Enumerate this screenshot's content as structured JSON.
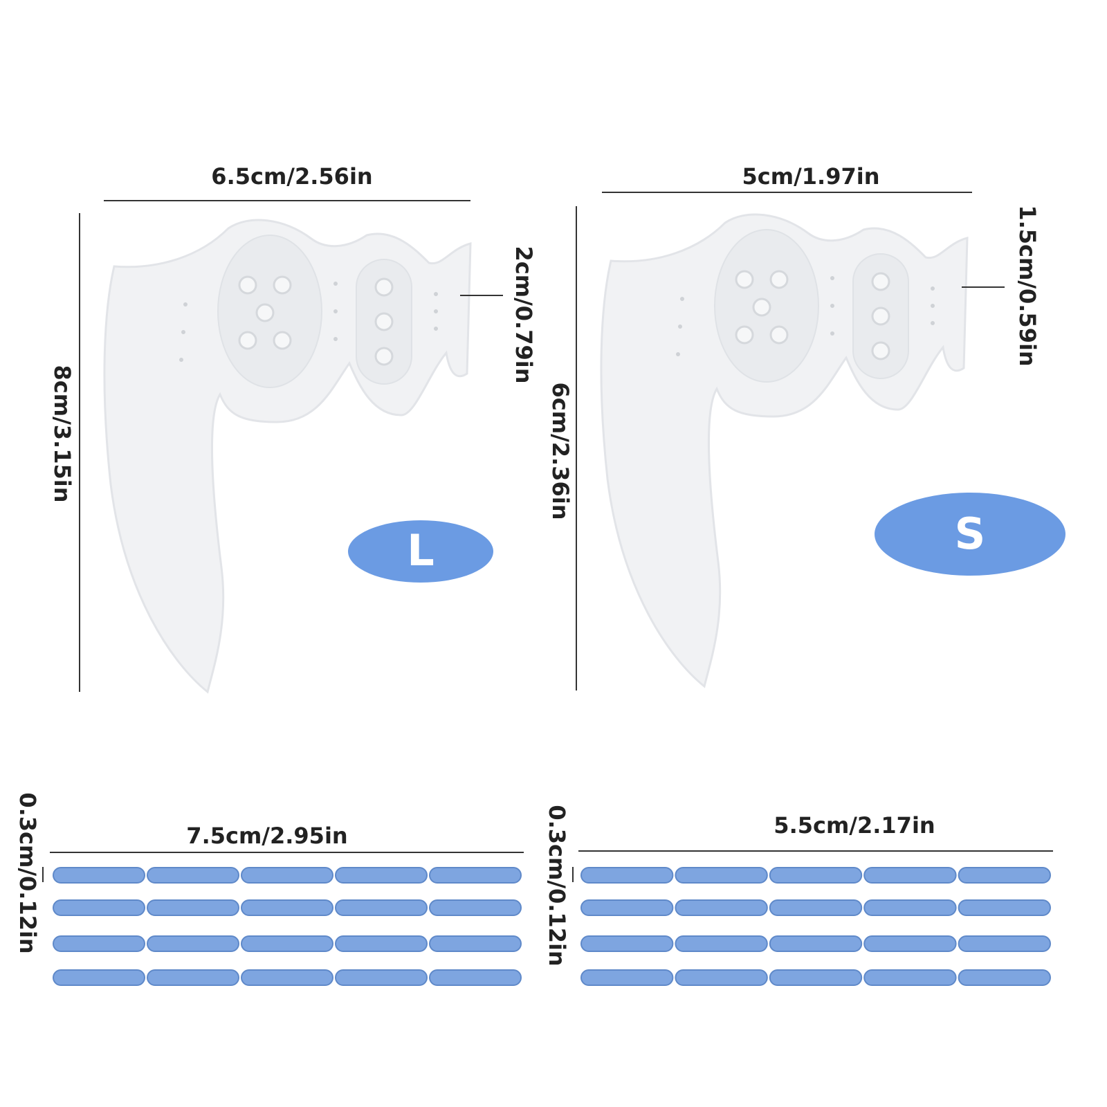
{
  "large": {
    "width": "6.5cm/2.56in",
    "height": "8cm/3.15in",
    "tab": "2cm/0.79in",
    "size": "L"
  },
  "small": {
    "width": "5cm/1.97in",
    "height": "6cm/2.36in",
    "tab": "1.5cm/0.59in",
    "size": "S"
  },
  "rods": [
    {
      "length": "7.5cm/2.95in",
      "thickness": "0.3cm/0.12in"
    },
    {
      "length": "5.5cm/2.17in",
      "thickness": "0.3cm/0.12in"
    }
  ]
}
